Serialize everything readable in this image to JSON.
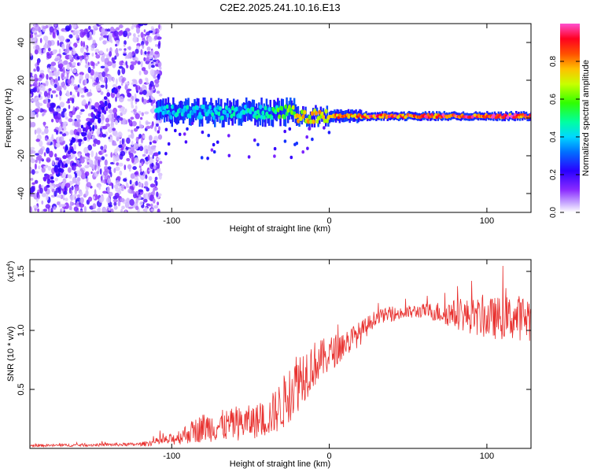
{
  "title": "C2E2.2025.241.10.16.E13",
  "chart_data": [
    {
      "type": "heatmap",
      "name": "spectrogram",
      "xlabel": "Height of straight line (km)",
      "ylabel": "Frequency (Hz)",
      "xlim": [
        -190,
        128
      ],
      "ylim": [
        -50,
        50
      ],
      "xticks": [
        -100,
        0,
        100
      ],
      "yticks": [
        -40,
        -20,
        0,
        20,
        40
      ],
      "tick_labels": {
        "x": [
          "-100",
          "0",
          "100"
        ],
        "y": [
          "-40",
          "-20",
          "0",
          "20",
          "40"
        ]
      },
      "noise_region": [
        -190,
        -110
      ],
      "signal_frequency_hz": 1,
      "ridge_amplitude": [
        {
          "x": -110,
          "amp": 0.45
        },
        {
          "x": -80,
          "amp": 0.45
        },
        {
          "x": -40,
          "amp": 0.5
        },
        {
          "x": -20,
          "amp": 0.75
        },
        {
          "x": 0,
          "amp": 0.85
        },
        {
          "x": 30,
          "amp": 0.95
        },
        {
          "x": 128,
          "amp": 0.97
        }
      ],
      "colorbar": {
        "label": "Normalized spectral amplitude",
        "range": [
          0,
          1
        ],
        "ticks": [
          0.0,
          0.2,
          0.4,
          0.6,
          0.8
        ],
        "tick_labels": [
          "0.0",
          "0.2",
          "0.4",
          "0.6",
          "0.8"
        ],
        "colors": [
          "#ffffff",
          "#b88cff",
          "#6a00ff",
          "#1a00ff",
          "#00b0ff",
          "#00ffb0",
          "#40ff00",
          "#ffff00",
          "#ff8000",
          "#ff0000",
          "#ff40c0"
        ]
      }
    },
    {
      "type": "line",
      "name": "snr",
      "xlabel": "Height of straight line (km)",
      "ylabel": "SNR (10 * v/v)",
      "y_multiplier": "(x10",
      "y_multiplier_exp": "4",
      "y_multiplier_close": ")",
      "xlim": [
        -190,
        128
      ],
      "ylim": [
        0,
        16000
      ],
      "xticks": [
        -100,
        0,
        100
      ],
      "yticks": [
        5000,
        10000,
        15000
      ],
      "tick_labels": {
        "x": [
          "-100",
          "0",
          "100"
        ],
        "y": [
          "0.5",
          "1.0",
          "1.5"
        ]
      },
      "color": "#e8302e",
      "series": [
        {
          "name": "SNR",
          "envelope": [
            {
              "x": -190,
              "base": 200,
              "spread": 200
            },
            {
              "x": -120,
              "base": 300,
              "spread": 300
            },
            {
              "x": -100,
              "base": 600,
              "spread": 1000
            },
            {
              "x": -80,
              "base": 1400,
              "spread": 2500
            },
            {
              "x": -60,
              "base": 1600,
              "spread": 2800
            },
            {
              "x": -40,
              "base": 2000,
              "spread": 3000
            },
            {
              "x": -30,
              "base": 3000,
              "spread": 4500
            },
            {
              "x": -20,
              "base": 5000,
              "spread": 5500
            },
            {
              "x": -10,
              "base": 6500,
              "spread": 4000
            },
            {
              "x": 0,
              "base": 7500,
              "spread": 3000
            },
            {
              "x": 10,
              "base": 8500,
              "spread": 2500
            },
            {
              "x": 20,
              "base": 9500,
              "spread": 2000
            },
            {
              "x": 30,
              "base": 11000,
              "spread": 1200
            },
            {
              "x": 60,
              "base": 11500,
              "spread": 1200
            },
            {
              "x": 80,
              "base": 11000,
              "spread": 2500
            },
            {
              "x": 100,
              "base": 10500,
              "spread": 3500
            },
            {
              "x": 128,
              "base": 10500,
              "spread": 4000
            }
          ]
        }
      ]
    }
  ]
}
